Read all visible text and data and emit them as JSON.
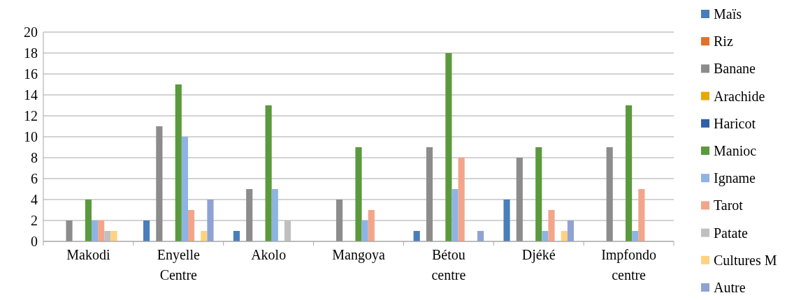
{
  "chart_data": {
    "type": "bar",
    "categories": [
      "Makodi",
      "Enyelle Centre",
      "Akolo",
      "Mangoya",
      "Bétou centre",
      "Djéké",
      "Impfondo centre"
    ],
    "series": [
      {
        "name": "Maïs",
        "color": "#4a7ebb",
        "values": [
          0,
          2,
          1,
          0,
          1,
          4,
          0
        ]
      },
      {
        "name": "Riz",
        "color": "#e2702a",
        "values": [
          0,
          0,
          0,
          0,
          0,
          0,
          0
        ]
      },
      {
        "name": "Banane",
        "color": "#8c8c8c",
        "values": [
          2,
          11,
          5,
          4,
          9,
          8,
          9
        ]
      },
      {
        "name": "Arachide",
        "color": "#e6a800",
        "values": [
          0,
          0,
          0,
          0,
          0,
          0,
          0
        ]
      },
      {
        "name": "Haricot",
        "color": "#2e5fa8",
        "values": [
          0,
          0,
          0,
          0,
          0,
          0,
          0
        ]
      },
      {
        "name": "Manioc",
        "color": "#5a9a3c",
        "values": [
          4,
          15,
          13,
          9,
          18,
          9,
          13
        ]
      },
      {
        "name": "Igname",
        "color": "#8eb4e3",
        "values": [
          2,
          10,
          5,
          2,
          5,
          1,
          1
        ]
      },
      {
        "name": "Tarot",
        "color": "#f2a58b",
        "values": [
          2,
          3,
          0,
          3,
          8,
          3,
          5
        ]
      },
      {
        "name": "Patate",
        "color": "#c0c0c0",
        "values": [
          1,
          0,
          2,
          0,
          0,
          0,
          0
        ]
      },
      {
        "name": "Cultures M",
        "color": "#ffd280",
        "values": [
          1,
          1,
          0,
          0,
          0,
          1,
          0
        ]
      },
      {
        "name": "Autre",
        "color": "#8fa2d4",
        "values": [
          0,
          4,
          0,
          0,
          1,
          2,
          0
        ]
      }
    ],
    "ylim": [
      0,
      20
    ],
    "yticks": [
      0,
      2,
      4,
      6,
      8,
      10,
      12,
      14,
      16,
      18,
      20
    ],
    "grid": "y",
    "legend": "right"
  }
}
